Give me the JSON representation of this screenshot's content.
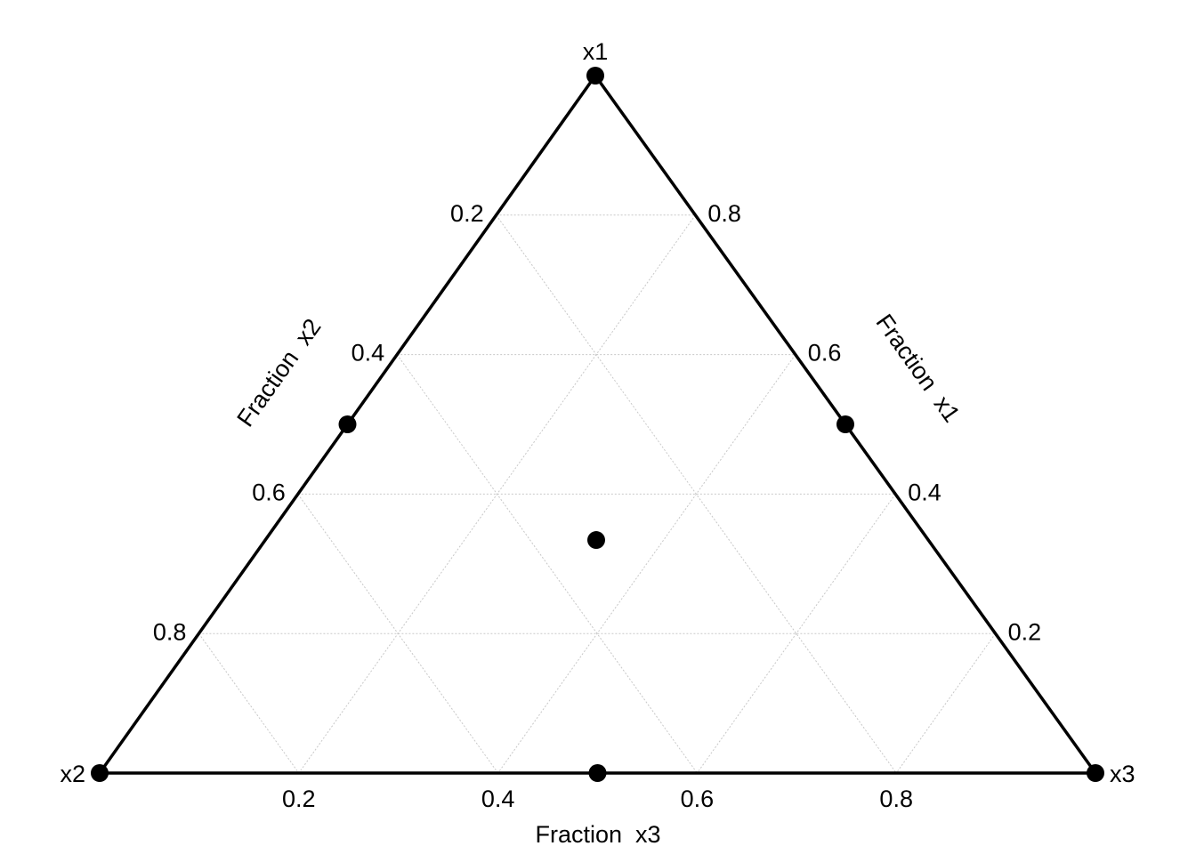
{
  "chart_data": {
    "type": "ternary",
    "vertex_labels": [
      "x1",
      "x2",
      "x3"
    ],
    "axes": {
      "x1": {
        "label": "Fraction  x1",
        "ticks": [
          0.2,
          0.4,
          0.6,
          0.8
        ]
      },
      "x2": {
        "label": "Fraction  x2",
        "ticks": [
          0.2,
          0.4,
          0.6,
          0.8
        ]
      },
      "x3": {
        "label": "Fraction  x3",
        "ticks": [
          0.2,
          0.4,
          0.6,
          0.8
        ]
      }
    },
    "points": {
      "x1": [
        1,
        0,
        0,
        0.5,
        0.5,
        0,
        0.333
      ],
      "x2": [
        0,
        1,
        0,
        0.5,
        0,
        0.5,
        0.333
      ],
      "x3": [
        0,
        0,
        1,
        0,
        0.5,
        0.5,
        0.333
      ]
    },
    "color": "#000000",
    "grid": true
  }
}
